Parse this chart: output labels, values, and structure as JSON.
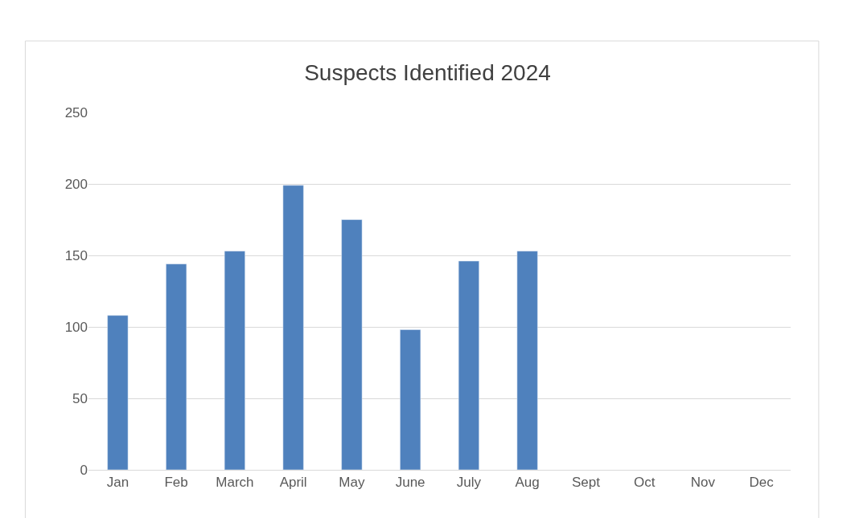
{
  "chart_data": {
    "type": "bar",
    "title": "Suspects Identified 2024",
    "categories": [
      "Jan",
      "Feb",
      "March",
      "April",
      "May",
      "June",
      "July",
      "Aug",
      "Sept",
      "Oct",
      "Nov",
      "Dec"
    ],
    "values": [
      108,
      144,
      153,
      199,
      175,
      98,
      146,
      153,
      null,
      null,
      null,
      null
    ],
    "color": "#4f81bd",
    "ylim": [
      0,
      250
    ],
    "yticks": [
      0,
      50,
      100,
      150,
      200,
      250
    ],
    "grid": "y",
    "legend": false
  }
}
